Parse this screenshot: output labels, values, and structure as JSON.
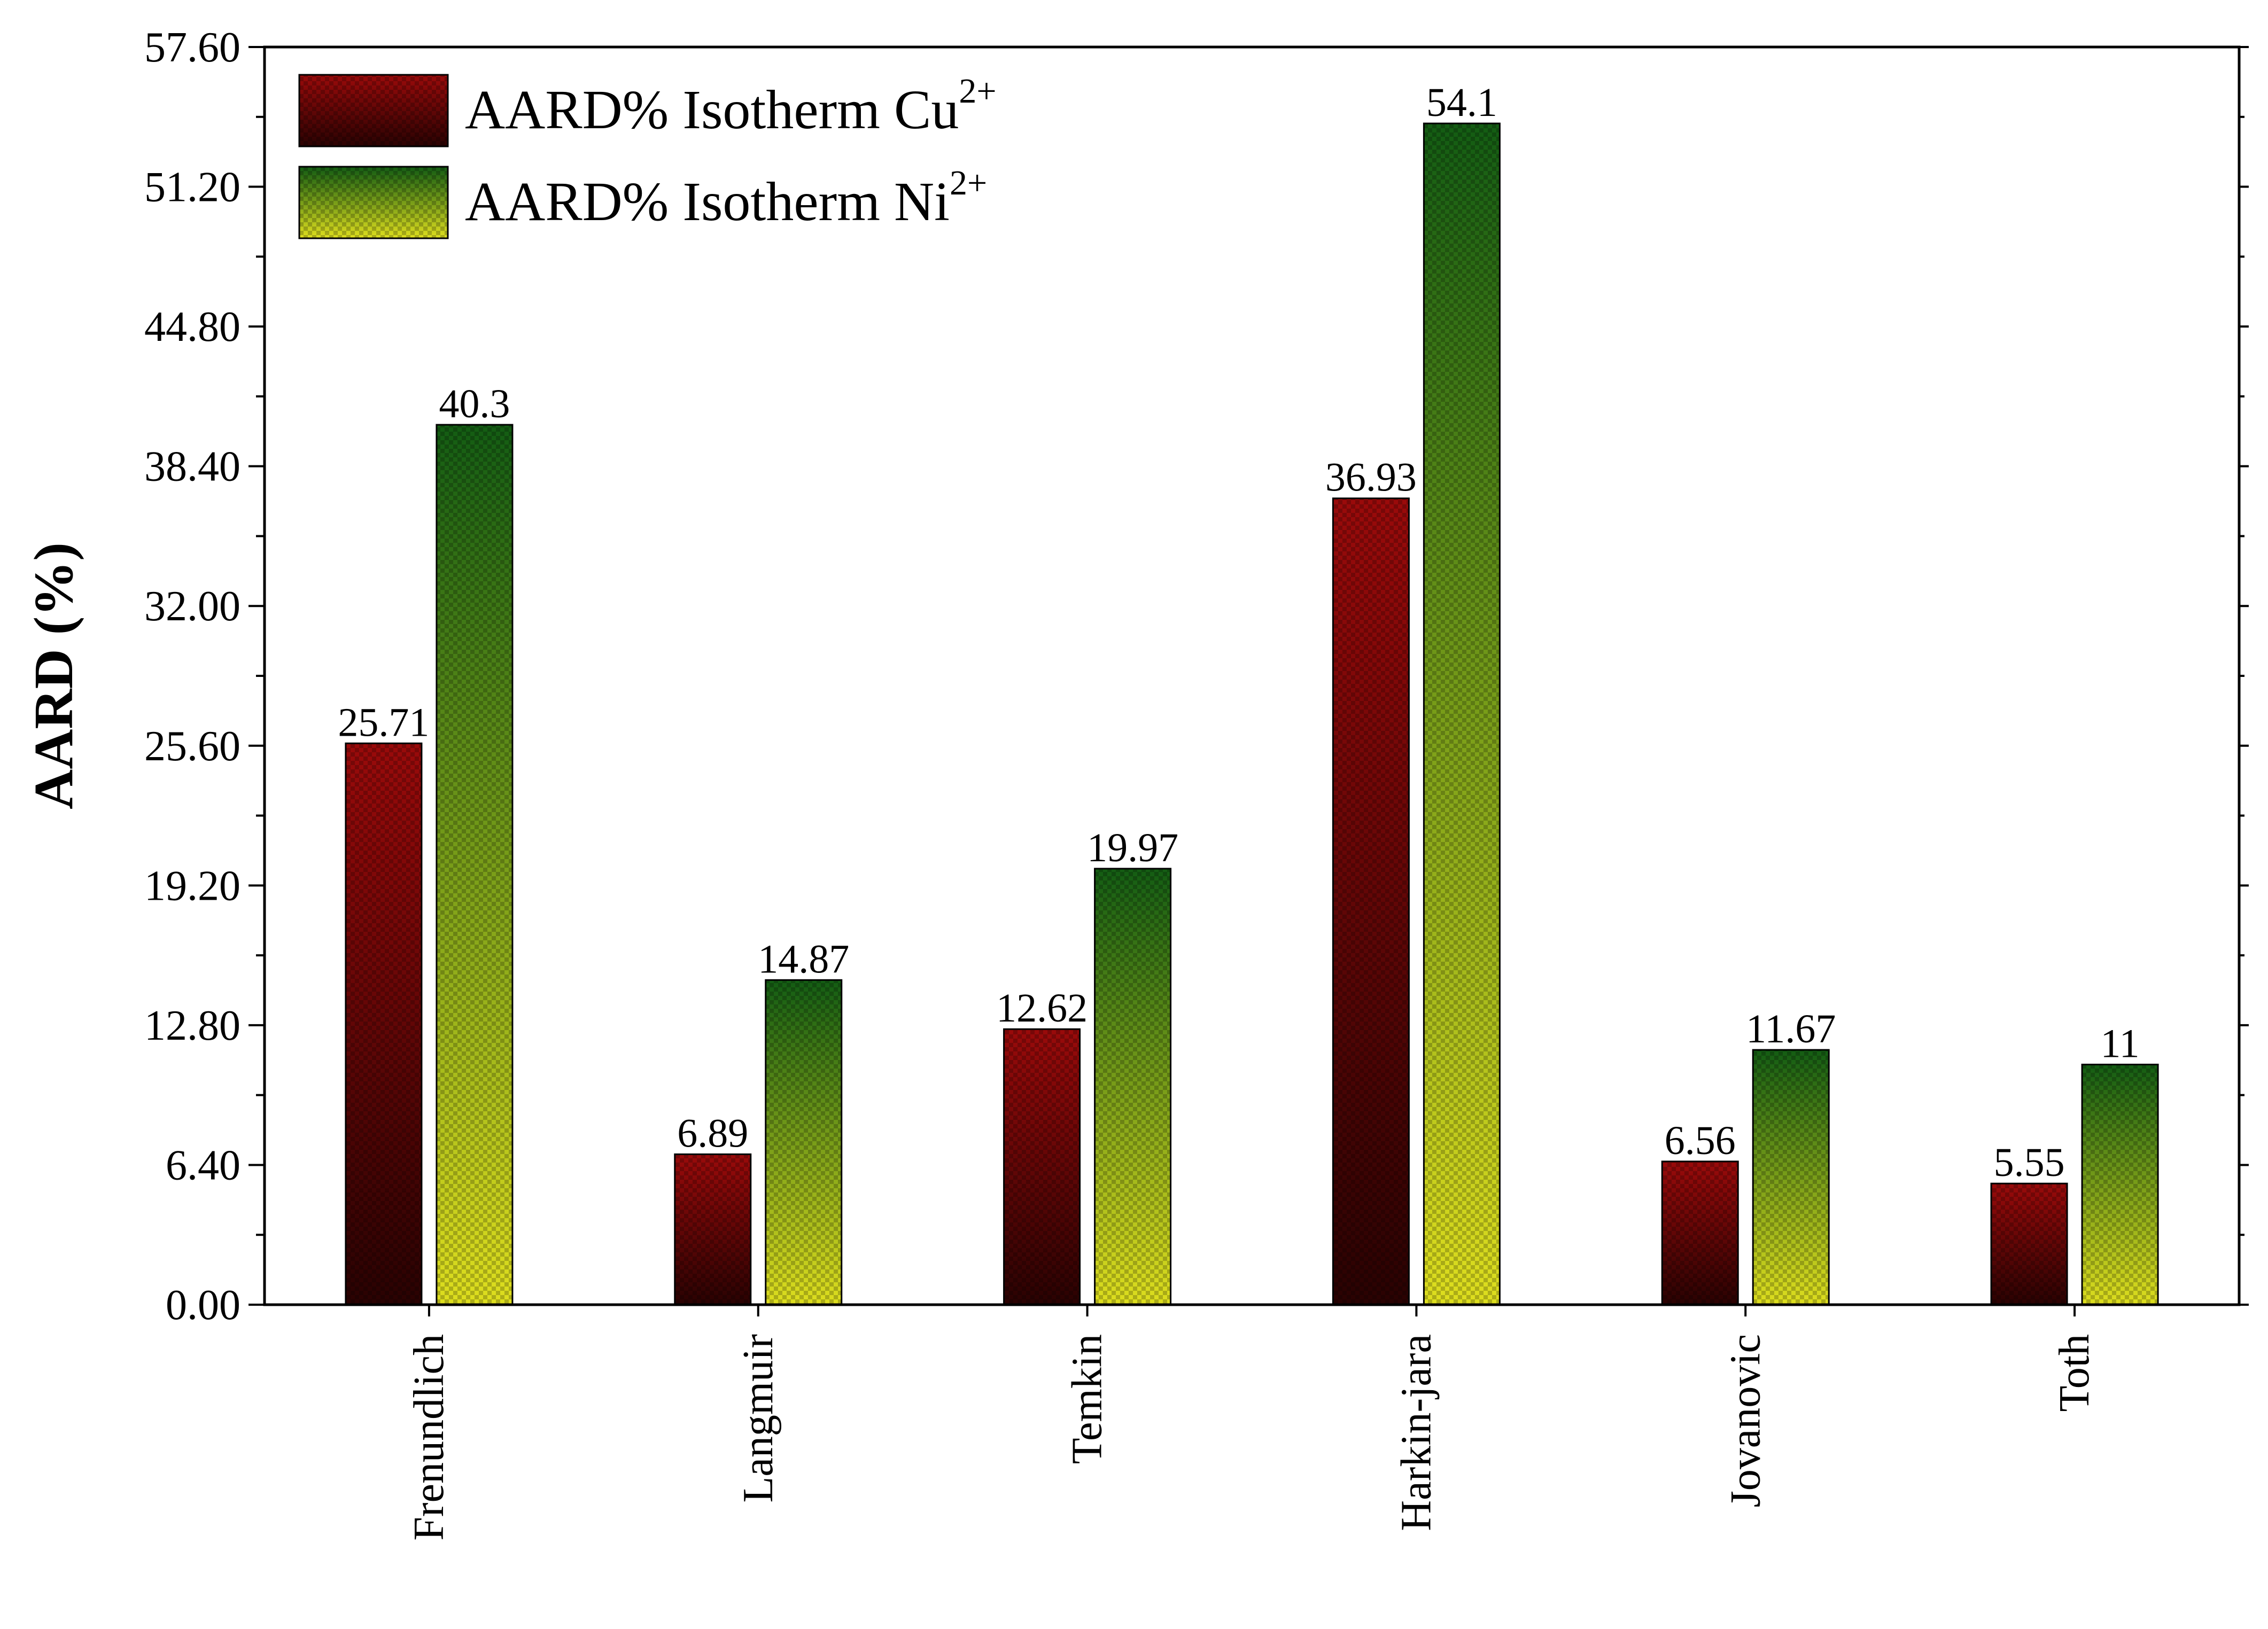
{
  "chart_data": {
    "type": "bar",
    "title": "",
    "xlabel": "",
    "ylabel": "AARD (%)",
    "ylim": [
      0,
      57.6
    ],
    "yticks": [
      "0.00",
      "6.40",
      "12.80",
      "19.20",
      "25.60",
      "32.00",
      "38.40",
      "44.80",
      "51.20",
      "57.60"
    ],
    "grid": false,
    "legend_position": "top-left",
    "categories": [
      "Frenundlich",
      "Langmuir",
      "Temkin",
      "Harkin-jara",
      "Jovanovic",
      "Toth"
    ],
    "series": [
      {
        "name": "AARD% Isotherm Cu",
        "superscript": "2+",
        "values": [
          25.71,
          6.89,
          12.62,
          36.93,
          6.56,
          5.55
        ],
        "labels": [
          "25.71",
          "6.89",
          "12.62",
          "36.93",
          "6.56",
          "5.55"
        ],
        "colors": [
          "#9a0a0a",
          "#2a0202"
        ]
      },
      {
        "name": "AARD% Isotherm Ni",
        "superscript": "2+",
        "values": [
          40.3,
          14.87,
          19.97,
          54.1,
          11.67,
          11
        ],
        "labels": [
          "40.3",
          "14.87",
          "19.97",
          "54.1",
          "11.67",
          "11"
        ],
        "colors": [
          "#135c13",
          "#dede1e"
        ]
      }
    ]
  }
}
